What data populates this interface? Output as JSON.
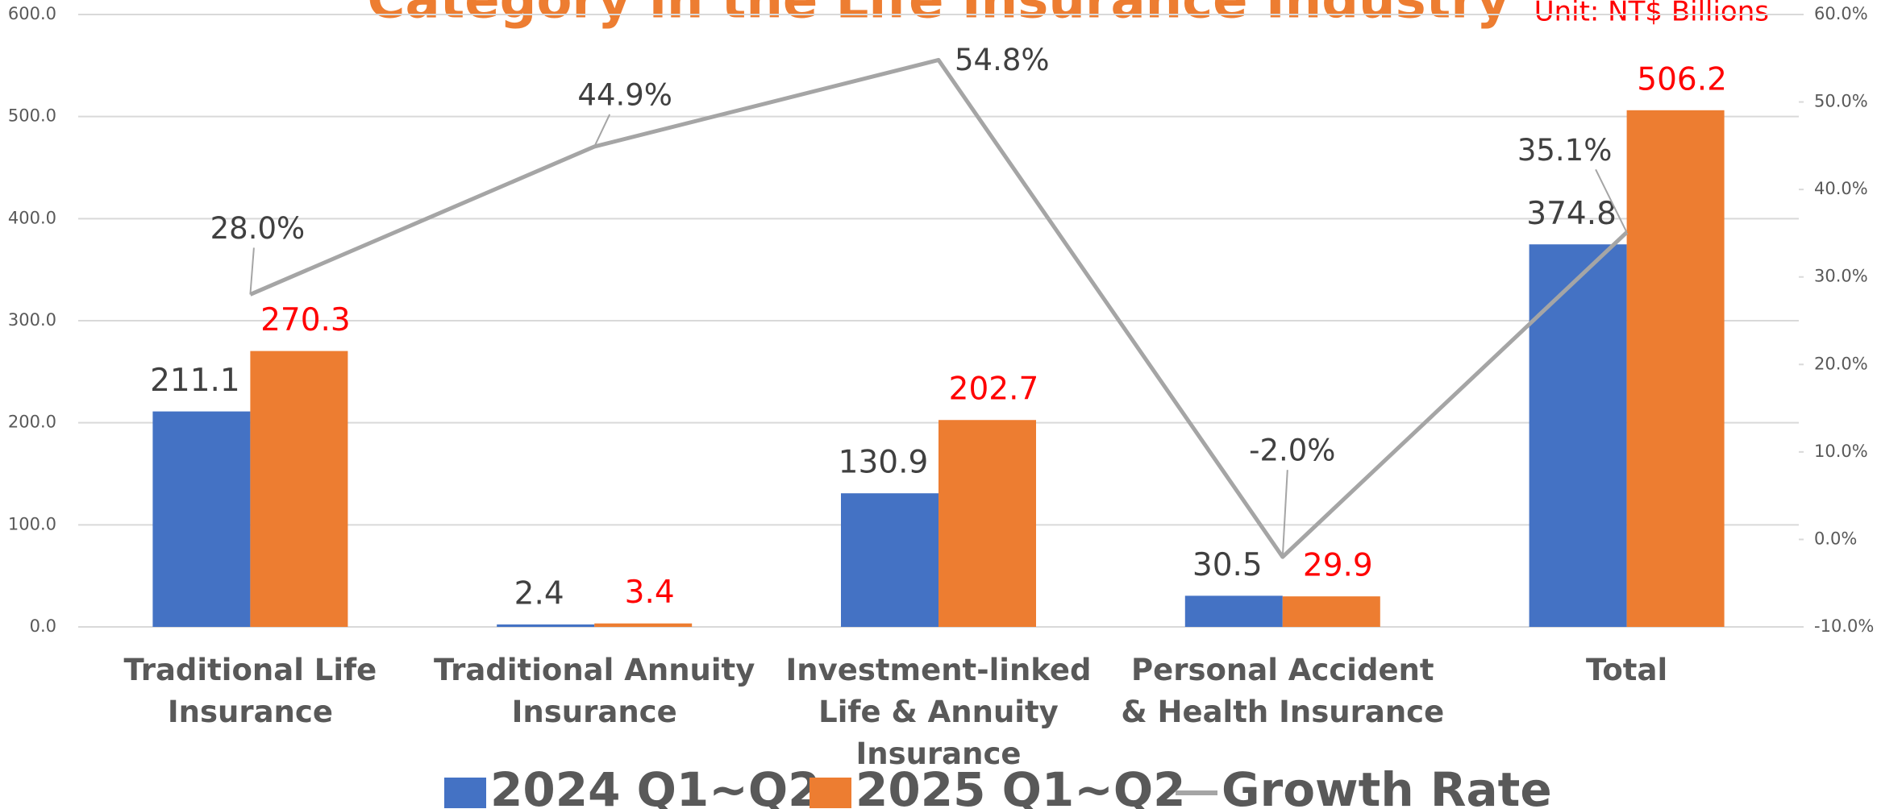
{
  "chart_data": {
    "type": "bar",
    "title": "Category in the Life Insurance Industry",
    "unit_label": "Unit: NT$ Billions",
    "categories": [
      "Traditional Life Insurance",
      "Traditional Annuity Insurance",
      "Investment-linked Life & Annuity Insurance",
      "Personal Accident & Health Insurance",
      "Total"
    ],
    "series": [
      {
        "name": "2024 Q1~Q2",
        "color": "#4472c4",
        "label_color": "#404040",
        "values": [
          211.1,
          2.4,
          130.9,
          30.5,
          374.8
        ]
      },
      {
        "name": "2025 Q1~Q2",
        "color": "#ed7d31",
        "label_color": "#ff0000",
        "values": [
          270.3,
          3.4,
          202.7,
          29.9,
          506.2
        ]
      },
      {
        "name": "Growth Rate",
        "type": "line",
        "axis": "y2",
        "color": "#a5a5a5",
        "label_color": "#404040",
        "values": [
          28.0,
          44.9,
          54.8,
          -2.0,
          35.1
        ],
        "value_labels": [
          "28.0%",
          "44.9%",
          "54.8%",
          "-2.0%",
          "35.1%"
        ]
      }
    ],
    "ylim": [
      0,
      600
    ],
    "yticks": [
      {
        "value": 0,
        "label": "0.0"
      },
      {
        "value": 100,
        "label": "100.0"
      },
      {
        "value": 200,
        "label": "200.0"
      },
      {
        "value": 300,
        "label": "300.0"
      },
      {
        "value": 400,
        "label": "400.0"
      },
      {
        "value": 500,
        "label": "500.0"
      },
      {
        "value": 600,
        "label": "600.0"
      }
    ],
    "y2lim": [
      -10,
      60
    ],
    "y2ticks": [
      {
        "value": -10,
        "label": "-10.0%"
      },
      {
        "value": 0,
        "label": "0.0%"
      },
      {
        "value": 10,
        "label": "10.0%"
      },
      {
        "value": 20,
        "label": "20.0%"
      },
      {
        "value": 30,
        "label": "30.0%"
      },
      {
        "value": 40,
        "label": "40.0%"
      },
      {
        "value": 50,
        "label": "50.0%"
      },
      {
        "value": 60,
        "label": "60.0%"
      }
    ],
    "grid": true,
    "legend": "bottom"
  }
}
